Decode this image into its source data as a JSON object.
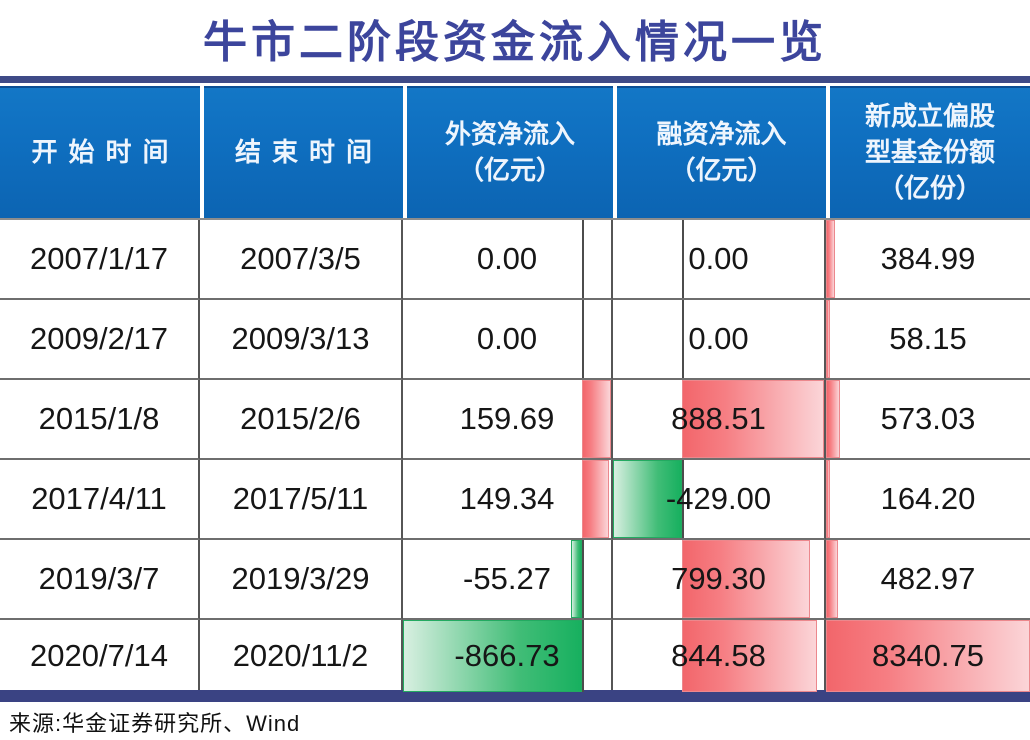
{
  "title": "牛市二阶段资金流入情况一览",
  "source_note": "来源:华金证券研究所、Wind",
  "colors": {
    "header_bg": "#0f6fc0",
    "header_text": "#eef5fd",
    "title_text": "#3c459c",
    "rule_navy": "#3e4a87",
    "bar_positive_red": "#f2666b",
    "bar_negative_green": "#17b05f",
    "grid_line": "#565656"
  },
  "table": {
    "headers": [
      "开始时间",
      "结束时间",
      "外资净流入\n（亿元）",
      "融资净流入\n（亿元）",
      "新成立偏股\n型基金份额\n（亿份）"
    ],
    "rows": [
      {
        "start": "2007/1/17",
        "end": "2007/3/5",
        "foreign": "0.00",
        "margin": "0.00",
        "fund": "384.99"
      },
      {
        "start": "2009/2/17",
        "end": "2009/3/13",
        "foreign": "0.00",
        "margin": "0.00",
        "fund": "58.15"
      },
      {
        "start": "2015/1/8",
        "end": "2015/2/6",
        "foreign": "159.69",
        "margin": "888.51",
        "fund": "573.03"
      },
      {
        "start": "2017/4/11",
        "end": "2017/5/11",
        "foreign": "149.34",
        "margin": "-429.00",
        "fund": "164.20"
      },
      {
        "start": "2019/3/7",
        "end": "2019/3/29",
        "foreign": "-55.27",
        "margin": "799.30",
        "fund": "482.97"
      },
      {
        "start": "2020/7/14",
        "end": "2020/11/2",
        "foreign": "-866.73",
        "margin": "844.58",
        "fund": "8340.75"
      }
    ]
  },
  "chart_data": {
    "type": "table",
    "title": "牛市二阶段资金流入情况一览",
    "columns": [
      "开始时间",
      "结束时间",
      "外资净流入（亿元）",
      "融资净流入（亿元）",
      "新成立偏股型基金份额（亿份）"
    ],
    "rows": [
      [
        "2007/1/17",
        "2007/3/5",
        0.0,
        0.0,
        384.99
      ],
      [
        "2009/2/17",
        "2009/3/13",
        0.0,
        0.0,
        58.15
      ],
      [
        "2015/1/8",
        "2015/2/6",
        159.69,
        888.51,
        573.03
      ],
      [
        "2017/4/11",
        "2017/5/11",
        149.34,
        -429.0,
        164.2
      ],
      [
        "2019/3/7",
        "2019/3/29",
        -55.27,
        799.3,
        482.97
      ],
      [
        "2020/7/14",
        "2020/11/2",
        -866.73,
        844.58,
        8340.75
      ]
    ],
    "databars": {
      "foreign": {
        "column_index": 2,
        "axis_frac": 0.861,
        "max_pos": 159.69,
        "max_neg": 866.73,
        "pos_color": "red",
        "neg_color": "green"
      },
      "margin": {
        "column_index": 3,
        "axis_frac": 0.326,
        "max_pos": 888.51,
        "max_neg": 429.0,
        "pos_color": "red",
        "neg_color": "green"
      },
      "fund": {
        "column_index": 4,
        "axis_frac": 0.0,
        "max_pos": 8340.75,
        "max_neg": 0,
        "pos_color": "red",
        "neg_color": "green"
      }
    },
    "source": "来源:华金证券研究所、Wind"
  }
}
